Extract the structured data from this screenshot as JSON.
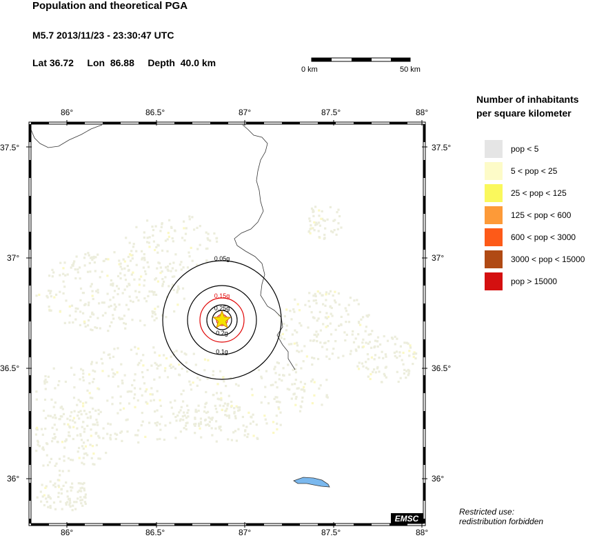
{
  "header": {
    "title": "Population and theoretical PGA",
    "event": "M5.7  2013/11/23 - 23:30:47 UTC",
    "lat": "Lat 36.72",
    "lon": "Lon  86.88",
    "depth": "Depth  40.0 km"
  },
  "scale_bar": {
    "start_label": "0 km",
    "end_label": "50 km"
  },
  "axes": {
    "lon_ticks": [
      "86°",
      "86.5°",
      "87°",
      "87.5°",
      "88°"
    ],
    "lat_ticks": [
      "37.5°",
      "37°",
      "36.5°",
      "36°"
    ]
  },
  "pga_contours": [
    {
      "label": "0.05g",
      "color": "#000000"
    },
    {
      "label": "0.15g",
      "color": "#e00000"
    },
    {
      "label": "0.25g",
      "color": "#000000"
    },
    {
      "label": "0.2g",
      "color": "#000000"
    },
    {
      "label": "0.1g",
      "color": "#000000"
    }
  ],
  "legend": {
    "title_line1": "Number of inhabitants",
    "title_line2": "per square kilometer",
    "items": [
      {
        "label": "pop < 5",
        "color": "#e5e5e5"
      },
      {
        "label": "5 < pop < 25",
        "color": "#fdfbc8"
      },
      {
        "label": "25 < pop < 125",
        "color": "#faf85c"
      },
      {
        "label": "125 < pop < 600",
        "color": "#fd9a38"
      },
      {
        "label": "600 < pop < 3000",
        "color": "#fd5a18"
      },
      {
        "label": "3000 < pop < 15000",
        "color": "#b04a14"
      },
      {
        "label": "pop > 15000",
        "color": "#d41010"
      }
    ]
  },
  "badge": "EMSC",
  "restricted_line1": "Restricted use:",
  "restricted_line2": "redistribution forbidden",
  "colors": {
    "lake": "#7ab8ee",
    "epicenter": "#f5e200",
    "population": "#eceddc"
  }
}
